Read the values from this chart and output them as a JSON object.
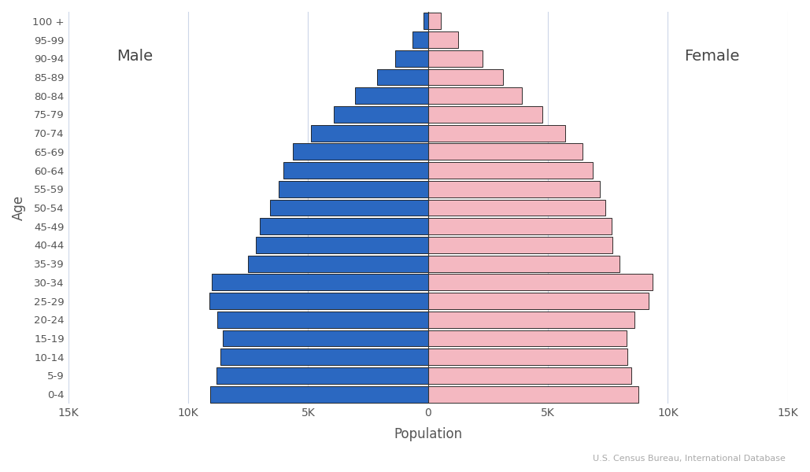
{
  "age_groups": [
    "0-4",
    "5-9",
    "10-14",
    "15-19",
    "20-24",
    "25-29",
    "30-34",
    "35-39",
    "40-44",
    "45-49",
    "50-54",
    "55-59",
    "60-64",
    "65-69",
    "70-74",
    "75-79",
    "80-84",
    "85-89",
    "90-94",
    "95-99",
    "100 +"
  ],
  "male": [
    9087,
    8823,
    8655,
    8543,
    8791,
    9129,
    9009,
    7498,
    7178,
    7006,
    6588,
    6241,
    6024,
    5637,
    4870,
    3923,
    3034,
    2130,
    1373,
    635,
    188
  ],
  "female": [
    8758,
    8490,
    8327,
    8268,
    8620,
    9204,
    9373,
    7987,
    7692,
    7661,
    7381,
    7152,
    6854,
    6458,
    5710,
    4768,
    3906,
    3122,
    2288,
    1266,
    522
  ],
  "male_color": "#2b68c1",
  "female_color": "#f4b8c1",
  "edge_color": "#111111",
  "background_color": "#ffffff",
  "xlabel": "Population",
  "ylabel": "Age",
  "male_label": "Male",
  "female_label": "Female",
  "source_text": "U.S. Census Bureau, International Database",
  "xlim": 15000,
  "grid_color": "#ccd6e8"
}
